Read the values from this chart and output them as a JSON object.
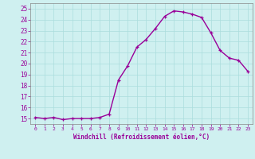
{
  "x": [
    0,
    1,
    2,
    3,
    4,
    5,
    6,
    7,
    8,
    9,
    10,
    11,
    12,
    13,
    14,
    15,
    16,
    17,
    18,
    19,
    20,
    21,
    22,
    23
  ],
  "y": [
    15.1,
    15.0,
    15.1,
    14.9,
    15.0,
    15.0,
    15.0,
    15.1,
    15.4,
    18.5,
    19.8,
    21.5,
    22.2,
    23.2,
    24.3,
    24.8,
    24.7,
    24.5,
    24.2,
    22.8,
    21.2,
    20.5,
    20.3,
    19.3
  ],
  "line_color": "#990099",
  "marker": "+",
  "marker_size": 3,
  "linewidth": 1.0,
  "bg_color": "#cff0f0",
  "grid_color": "#aadddd",
  "xlabel": "Windchill (Refroidissement éolien,°C)",
  "xlabel_color": "#990099",
  "tick_color": "#990099",
  "xlim": [
    -0.5,
    23.5
  ],
  "ylim": [
    14.5,
    25.5
  ],
  "xticks": [
    0,
    1,
    2,
    3,
    4,
    5,
    6,
    7,
    8,
    9,
    10,
    11,
    12,
    13,
    14,
    15,
    16,
    17,
    18,
    19,
    20,
    21,
    22,
    23
  ],
  "xtick_labels": [
    "0",
    "1",
    "2",
    "3",
    "4",
    "5",
    "6",
    "7",
    "8",
    "9",
    "10",
    "11",
    "12",
    "13",
    "14",
    "15",
    "16",
    "17",
    "18",
    "19",
    "20",
    "21",
    "22",
    "23"
  ],
  "yticks": [
    15,
    16,
    17,
    18,
    19,
    20,
    21,
    22,
    23,
    24,
    25
  ],
  "ytick_labels": [
    "15",
    "16",
    "17",
    "18",
    "19",
    "20",
    "21",
    "22",
    "23",
    "24",
    "25"
  ],
  "spine_color": "#888888"
}
